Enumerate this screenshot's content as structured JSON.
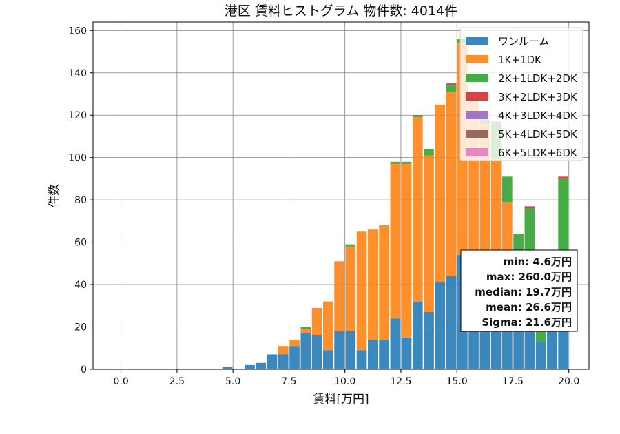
{
  "chart_data": {
    "type": "bar",
    "stacked": true,
    "title": "港区 賃料ヒストグラム 物件数: 4014件",
    "xlabel": "賃料[万円]",
    "ylabel": "件数",
    "xlim": [
      -1.25,
      20.9
    ],
    "ylim": [
      0,
      164
    ],
    "grid": true,
    "legend_position": "top-right",
    "xticks": [
      0.0,
      2.5,
      5.0,
      7.5,
      10.0,
      12.5,
      15.0,
      17.5,
      20.0
    ],
    "xtick_labels": [
      "0.0",
      "2.5",
      "5.0",
      "7.5",
      "10.0",
      "12.5",
      "15.0",
      "17.5",
      "20.0"
    ],
    "yticks": [
      0,
      20,
      40,
      60,
      80,
      100,
      120,
      140,
      160
    ],
    "ytick_labels": [
      "0",
      "20",
      "40",
      "60",
      "80",
      "100",
      "120",
      "140",
      "160"
    ],
    "bin_width": 0.5,
    "bin_starts": [
      4.5,
      5.0,
      5.5,
      6.0,
      6.5,
      7.0,
      7.5,
      8.0,
      8.5,
      9.0,
      9.5,
      10.0,
      10.5,
      11.0,
      11.5,
      12.0,
      12.5,
      13.0,
      13.5,
      14.0,
      14.5,
      15.0,
      15.5,
      16.0,
      16.5,
      17.0,
      17.5,
      18.0,
      18.5,
      19.0,
      19.5
    ],
    "series": [
      {
        "name": "ワンルーム",
        "color": "#1f77b4",
        "values": [
          1,
          0,
          2,
          3,
          7,
          7,
          11,
          17,
          16,
          9,
          18,
          18,
          9,
          14,
          14,
          24,
          15,
          32,
          27,
          41,
          44,
          54,
          48,
          46,
          40,
          35,
          30,
          26,
          13,
          18,
          20
        ]
      },
      {
        "name": "1K+1DK",
        "color": "#ff7f0e",
        "values": [
          0,
          0,
          0,
          0,
          0,
          4,
          3,
          2,
          13,
          23,
          33,
          40,
          56,
          52,
          54,
          73,
          82,
          87,
          74,
          84,
          87,
          100,
          78,
          70,
          60,
          44,
          2,
          0,
          0,
          0,
          0
        ]
      },
      {
        "name": "2K+1LDK+2DK",
        "color": "#2ca02c",
        "values": [
          0,
          0,
          0,
          0,
          0,
          0,
          0,
          1,
          0,
          0,
          0,
          1,
          0,
          0,
          0,
          1,
          1,
          1,
          3,
          0,
          3,
          2,
          2,
          2,
          17,
          12,
          32,
          50,
          15,
          30,
          70
        ]
      },
      {
        "name": "3K+2LDK+3DK",
        "color": "#d62728",
        "values": [
          0,
          0,
          0,
          0,
          0,
          0,
          0,
          0,
          0,
          0,
          0,
          0,
          0,
          0,
          0,
          0,
          0,
          0,
          0,
          0,
          1,
          0,
          0,
          0,
          0,
          0,
          0,
          1,
          0,
          0,
          1
        ]
      },
      {
        "name": "4K+3LDK+4DK",
        "color": "#9467bd",
        "values": [
          0,
          0,
          0,
          0,
          0,
          0,
          0,
          0,
          0,
          0,
          0,
          0,
          0,
          0,
          0,
          0,
          0,
          0,
          0,
          0,
          0,
          0,
          0,
          0,
          0,
          0,
          0,
          0,
          0,
          0,
          0
        ]
      },
      {
        "name": "5K+4LDK+5DK",
        "color": "#8c564b",
        "values": [
          0,
          0,
          0,
          0,
          0,
          0,
          0,
          0,
          0,
          0,
          0,
          0,
          0,
          0,
          0,
          0,
          0,
          0,
          0,
          0,
          0,
          0,
          0,
          0,
          0,
          0,
          0,
          0,
          0,
          0,
          0
        ]
      },
      {
        "name": "6K+5LDK+6DK",
        "color": "#e377c2",
        "values": [
          0,
          0,
          0,
          0,
          0,
          0,
          0,
          0,
          0,
          0,
          0,
          0,
          0,
          0,
          0,
          0,
          0,
          0,
          0,
          0,
          0,
          0,
          0,
          0,
          0,
          0,
          0,
          0,
          0,
          0,
          0
        ]
      }
    ],
    "stats_box": [
      "min: 4.6万円",
      "max: 260.0万円",
      "median: 19.7万円",
      "mean: 26.6万円",
      "Sigma: 21.6万円"
    ]
  }
}
